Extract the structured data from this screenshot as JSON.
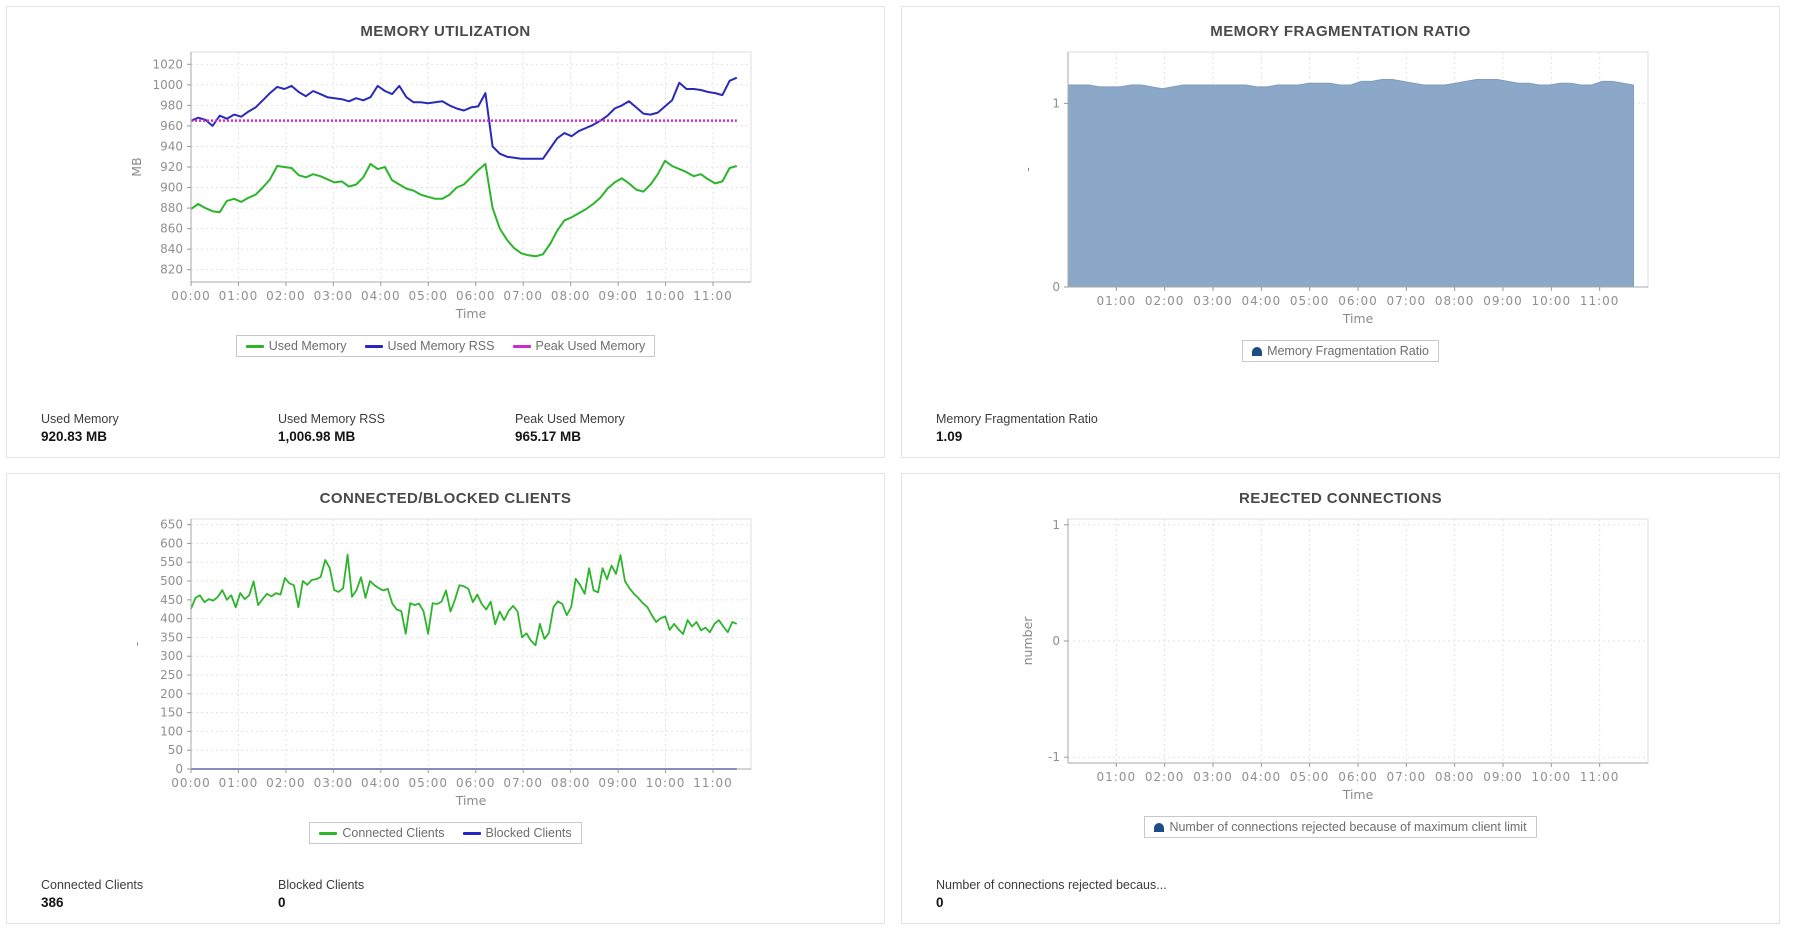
{
  "panels": [
    {
      "title": "MEMORY UTILIZATION",
      "legend": [
        {
          "label": "Used Memory",
          "color": "#2cb52c",
          "marker": "line"
        },
        {
          "label": "Used Memory RSS",
          "color": "#2626c8",
          "marker": "line"
        },
        {
          "label": "Peak Used Memory",
          "color": "#cc2acc",
          "marker": "line"
        }
      ],
      "stats": [
        {
          "label": "Used Memory",
          "value": "920.83 MB"
        },
        {
          "label": "Used Memory RSS",
          "value": "1,006.98 MB"
        },
        {
          "label": "Peak Used Memory",
          "value": "965.17 MB"
        }
      ]
    },
    {
      "title": "MEMORY FRAGMENTATION RATIO",
      "legend": [
        {
          "label": "Memory Fragmentation Ratio",
          "color": "#1a4e85",
          "marker": "area"
        }
      ],
      "stats": [
        {
          "label": "Memory Fragmentation Ratio",
          "value": "1.09"
        }
      ]
    },
    {
      "title": "CONNECTED/BLOCKED CLIENTS",
      "legend": [
        {
          "label": "Connected Clients",
          "color": "#2cb52c",
          "marker": "line"
        },
        {
          "label": "Blocked Clients",
          "color": "#2626c8",
          "marker": "line"
        }
      ],
      "stats": [
        {
          "label": "Connected Clients",
          "value": "386"
        },
        {
          "label": "Blocked Clients",
          "value": "0"
        }
      ]
    },
    {
      "title": "REJECTED CONNECTIONS",
      "legend": [
        {
          "label": "Number of connections rejected because of maximum client limit",
          "color": "#1a4e85",
          "marker": "area"
        }
      ],
      "stats": [
        {
          "label": "Number of connections rejected becaus...",
          "value": "0"
        }
      ]
    }
  ],
  "chart_data": [
    {
      "type": "line",
      "title": "MEMORY UTILIZATION",
      "xlabel": "Time",
      "ylabel": "MB",
      "ylim": [
        808,
        1032
      ],
      "yticks": [
        820,
        840,
        860,
        880,
        900,
        920,
        940,
        960,
        980,
        1000,
        1020
      ],
      "x_max": 11.8,
      "x_tick_hours": [
        0,
        1,
        2,
        3,
        4,
        5,
        6,
        7,
        8,
        9,
        10,
        11
      ],
      "x_tick_labels": [
        "00:00",
        "01:00",
        "02:00",
        "03:00",
        "04:00",
        "05:00",
        "06:00",
        "07:00",
        "08:00",
        "09:00",
        "10:00",
        "11:00"
      ],
      "grid": true,
      "legend_position": "bottom",
      "series": [
        {
          "name": "Used Memory",
          "color": "#2cb52c",
          "type": "line",
          "width": 2,
          "x_start": 0,
          "x_end": 11.5,
          "values": [
            879,
            884,
            880,
            877,
            876,
            887,
            889,
            886,
            890,
            893,
            900,
            908,
            921,
            920,
            919,
            912,
            910,
            913,
            911,
            908,
            905,
            906,
            901,
            903,
            910,
            923,
            918,
            920,
            907,
            903,
            899,
            897,
            893,
            891,
            889,
            889,
            893,
            900,
            903,
            910,
            917,
            923,
            880,
            860,
            849,
            841,
            836,
            834,
            833,
            835,
            845,
            858,
            868,
            871,
            875,
            879,
            884,
            890,
            899,
            905,
            909,
            904,
            898,
            896,
            903,
            913,
            926,
            921,
            918,
            915,
            911,
            913,
            908,
            904,
            906,
            919,
            921
          ]
        },
        {
          "name": "Used Memory RSS",
          "color": "#2a2ab8",
          "type": "line",
          "width": 2,
          "x_start": 0,
          "x_end": 11.5,
          "values": [
            965,
            968,
            966,
            960,
            970,
            967,
            971,
            969,
            974,
            978,
            985,
            992,
            998,
            996,
            999,
            993,
            989,
            994,
            991,
            988,
            987,
            986,
            984,
            987,
            985,
            988,
            999,
            994,
            991,
            999,
            988,
            983,
            983,
            982,
            983,
            984,
            980,
            977,
            975,
            978,
            979,
            992,
            940,
            933,
            930,
            929,
            928,
            928,
            928,
            928,
            938,
            948,
            953,
            950,
            955,
            958,
            961,
            965,
            970,
            977,
            980,
            984,
            978,
            972,
            971,
            973,
            979,
            985,
            1002,
            996,
            996,
            995,
            993,
            992,
            990,
            1004,
            1007
          ]
        },
        {
          "name": "Peak Used Memory",
          "color": "#d02ad0",
          "type": "line",
          "width": 2.5,
          "dash": "2 2",
          "x_start": 0,
          "x_end": 11.5,
          "values": [
            965.17,
            965.17
          ]
        }
      ]
    },
    {
      "type": "area",
      "title": "MEMORY FRAGMENTATION RATIO",
      "xlabel": "Time",
      "ylabel": "-",
      "ylim": [
        0,
        1.28
      ],
      "yticks": [
        0,
        1
      ],
      "x_max": 12,
      "x_tick_hours": [
        1,
        2,
        3,
        4,
        5,
        6,
        7,
        8,
        9,
        10,
        11
      ],
      "x_tick_labels": [
        "01:00",
        "02:00",
        "03:00",
        "04:00",
        "05:00",
        "06:00",
        "07:00",
        "08:00",
        "09:00",
        "10:00",
        "11:00"
      ],
      "grid": true,
      "legend_position": "bottom",
      "series": [
        {
          "name": "Memory Fragmentation Ratio",
          "color": "#8ca8c8",
          "stroke": "#7e9dbf",
          "type": "area",
          "x_start": 0,
          "x_end": 11.7,
          "values": [
            1.1,
            1.1,
            1.1,
            1.09,
            1.09,
            1.09,
            1.1,
            1.1,
            1.09,
            1.08,
            1.09,
            1.1,
            1.1,
            1.1,
            1.1,
            1.1,
            1.1,
            1.1,
            1.09,
            1.09,
            1.1,
            1.1,
            1.1,
            1.11,
            1.11,
            1.11,
            1.1,
            1.1,
            1.12,
            1.12,
            1.13,
            1.13,
            1.12,
            1.11,
            1.1,
            1.1,
            1.1,
            1.11,
            1.12,
            1.13,
            1.13,
            1.13,
            1.12,
            1.11,
            1.11,
            1.1,
            1.1,
            1.11,
            1.11,
            1.1,
            1.1,
            1.12,
            1.12,
            1.11,
            1.1
          ]
        }
      ]
    },
    {
      "type": "line",
      "title": "CONNECTED/BLOCKED CLIENTS",
      "xlabel": "Time",
      "ylabel": "-",
      "ylim": [
        0,
        665
      ],
      "yticks": [
        0,
        50,
        100,
        150,
        200,
        250,
        300,
        350,
        400,
        450,
        500,
        550,
        600,
        650
      ],
      "x_max": 11.8,
      "x_tick_hours": [
        0,
        1,
        2,
        3,
        4,
        5,
        6,
        7,
        8,
        9,
        10,
        11
      ],
      "x_tick_labels": [
        "00:00",
        "01:00",
        "02:00",
        "03:00",
        "04:00",
        "05:00",
        "06:00",
        "07:00",
        "08:00",
        "09:00",
        "10:00",
        "11:00"
      ],
      "grid": true,
      "legend_position": "bottom",
      "series": [
        {
          "name": "Connected Clients",
          "color": "#2cb52c",
          "type": "line",
          "width": 1.8,
          "x_start": 0,
          "x_end": 11.5,
          "values": [
            426,
            455,
            462,
            444,
            452,
            448,
            458,
            476,
            450,
            462,
            430,
            468,
            452,
            462,
            499,
            436,
            452,
            466,
            459,
            468,
            464,
            508,
            494,
            489,
            430,
            500,
            490,
            503,
            505,
            511,
            556,
            535,
            476,
            471,
            481,
            570,
            458,
            476,
            510,
            455,
            500,
            489,
            481,
            475,
            479,
            440,
            424,
            420,
            360,
            441,
            436,
            440,
            419,
            360,
            441,
            439,
            445,
            475,
            419,
            450,
            489,
            486,
            479,
            444,
            464,
            439,
            424,
            445,
            385,
            419,
            396,
            420,
            434,
            419,
            350,
            361,
            341,
            329,
            386,
            346,
            362,
            430,
            446,
            439,
            409,
            431,
            506,
            489,
            466,
            534,
            475,
            470,
            534,
            505,
            541,
            519,
            569,
            500,
            481,
            466,
            455,
            441,
            431,
            409,
            391,
            401,
            406,
            370,
            386,
            371,
            359,
            396,
            379,
            391,
            369,
            376,
            364,
            386,
            396,
            379,
            364,
            391,
            386
          ]
        },
        {
          "name": "Blocked Clients",
          "color": "#6a6ad8",
          "type": "line",
          "width": 2,
          "x_start": 0,
          "x_end": 11.5,
          "values": [
            0,
            0
          ]
        }
      ]
    },
    {
      "type": "line",
      "title": "REJECTED CONNECTIONS",
      "xlabel": "Time",
      "ylabel": "number",
      "ylim": [
        -1.05,
        1.05
      ],
      "yticks": [
        -1,
        0,
        1
      ],
      "x_max": 12,
      "x_tick_hours": [
        1,
        2,
        3,
        4,
        5,
        6,
        7,
        8,
        9,
        10,
        11
      ],
      "x_tick_labels": [
        "01:00",
        "02:00",
        "03:00",
        "04:00",
        "05:00",
        "06:00",
        "07:00",
        "08:00",
        "09:00",
        "10:00",
        "11:00"
      ],
      "grid": true,
      "legend_position": "bottom",
      "series": [
        {
          "name": "Number of connections rejected because of maximum client limit",
          "color": "#1a4e85",
          "type": "line",
          "values": []
        }
      ]
    }
  ]
}
